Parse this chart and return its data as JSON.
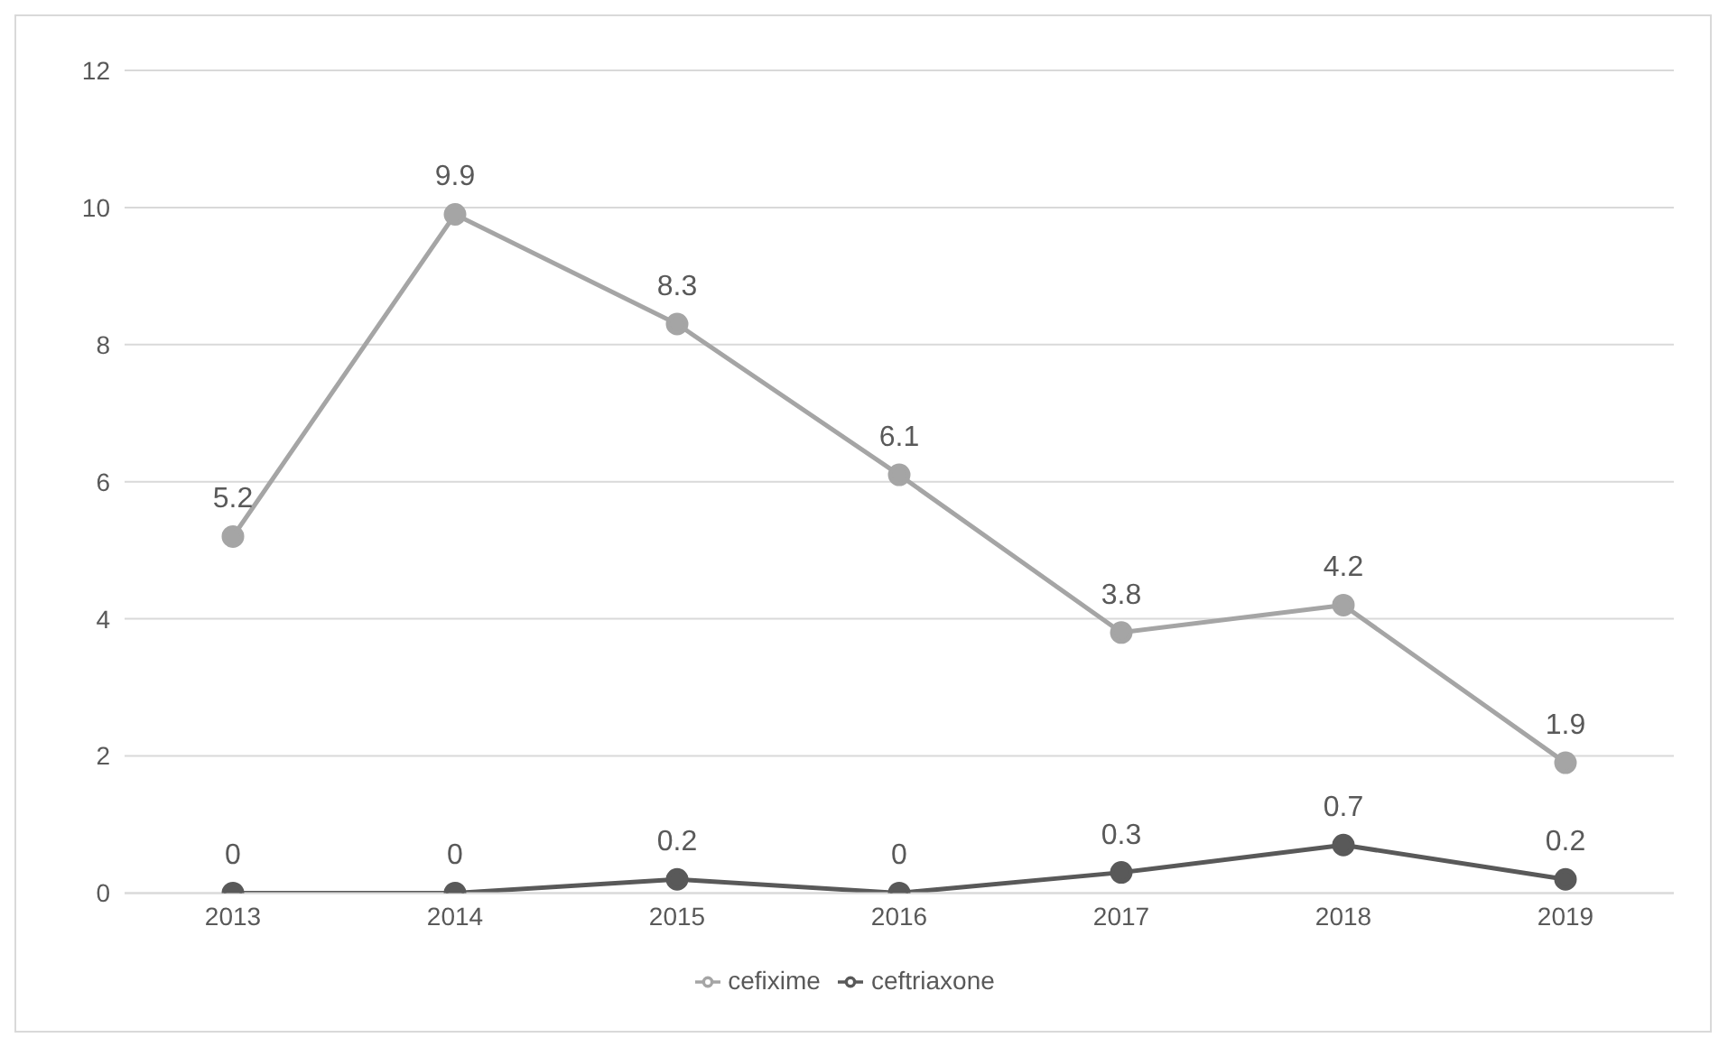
{
  "chart_data": {
    "type": "line",
    "categories": [
      "2013",
      "2014",
      "2015",
      "2016",
      "2017",
      "2018",
      "2019"
    ],
    "series": [
      {
        "name": "ceftriaxone",
        "color": "#595959",
        "values": [
          0,
          0,
          0.2,
          0,
          0.3,
          0.7,
          0.2
        ]
      },
      {
        "name": "cefixime",
        "color": "#a5a5a5",
        "values": [
          5.2,
          9.9,
          8.3,
          6.1,
          3.8,
          4.2,
          1.9
        ]
      }
    ],
    "ylim": [
      0,
      12
    ],
    "yticks": [
      0,
      2,
      4,
      6,
      8,
      10,
      12
    ],
    "grid": "y",
    "legend": "bottom",
    "marker": "circle",
    "line_style": "solid",
    "data_labels": true
  }
}
